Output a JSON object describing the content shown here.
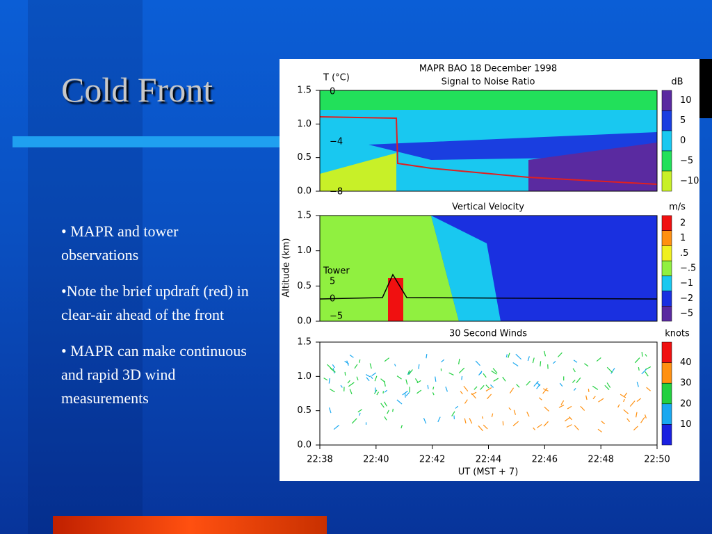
{
  "slide": {
    "title": "Cold Front",
    "bullets": [
      "• MAPR and tower observations",
      "•Note the brief updraft (red)  in clear-air ahead of the front",
      "• MAPR can make continuous and rapid 3D wind measurements"
    ]
  },
  "figure": {
    "title": "MAPR BAO 18 December 1998",
    "y_axis_label": "Altitude (km)",
    "yticks": [
      "1.5",
      "1.0",
      "0.5",
      "0.0"
    ],
    "x_ticks": [
      "22:38",
      "22:40",
      "22:42",
      "22:44",
      "22:46",
      "22:48",
      "22:50"
    ],
    "x_axis_label": "UT  (MST + 7)",
    "panels": [
      {
        "title": "Signal to Noise Ratio",
        "unit": "dB",
        "left_label": "T (°C)",
        "left_ticks": [
          "0",
          "−4",
          "−8"
        ],
        "colorbar": [
          "10",
          "5",
          "0",
          "−5",
          "−10"
        ]
      },
      {
        "title": "Vertical Velocity",
        "unit": "m/s",
        "left_label": "Tower",
        "left_ticks": [
          "5",
          "0",
          "−5"
        ],
        "colorbar": [
          "2",
          "1",
          ".5",
          "−.5",
          "−1",
          "−2",
          "−5"
        ]
      },
      {
        "title": "30 Second Winds",
        "unit": "knots",
        "colorbar": [
          "40",
          "30",
          "20",
          "10"
        ]
      }
    ]
  }
}
